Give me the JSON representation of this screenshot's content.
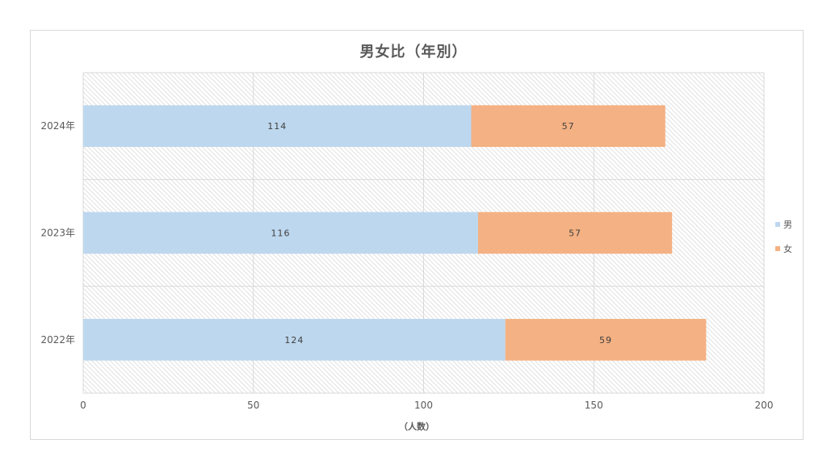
{
  "chart_data": {
    "type": "bar",
    "orientation": "horizontal",
    "stacked": true,
    "title": "男女比（年別）",
    "xlabel": "（人数）",
    "ylabel": "",
    "categories": [
      "2022年",
      "2023年",
      "2024年"
    ],
    "series": [
      {
        "name": "男",
        "values": [
          124,
          116,
          114
        ],
        "color": "#bdd7ee"
      },
      {
        "name": "女",
        "values": [
          59,
          57,
          57
        ],
        "color": "#f4b183"
      }
    ],
    "xlim": [
      0,
      200
    ],
    "xticks": [
      0,
      50,
      100,
      150,
      200
    ],
    "grid": true,
    "legend": "right",
    "plot_background": "hatched-gray"
  }
}
